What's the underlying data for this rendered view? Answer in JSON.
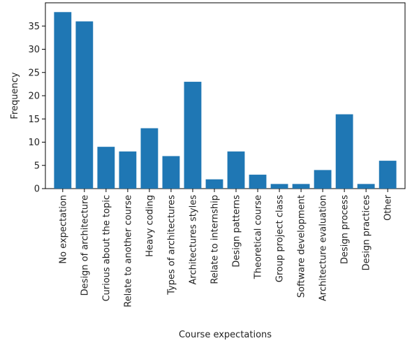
{
  "chart_data": {
    "type": "bar",
    "title": "",
    "xlabel": "Course expectations",
    "ylabel": "Frequency",
    "ylim": [
      0,
      40
    ],
    "yticks": [
      0,
      5,
      10,
      15,
      20,
      25,
      30,
      35
    ],
    "bar_color": "#1f77b4",
    "grid": false,
    "categories": [
      "No expectation",
      "Design of architecture",
      "Curious about the topic",
      "Relate to another course",
      "Heavy coding",
      "Types of architectures",
      "Architectures styles",
      "Relate to internship",
      "Design patterns",
      "Theoretical course",
      "Group project class",
      "Software development",
      "Architecture evaluation",
      "Design process",
      "Design practices",
      "Other"
    ],
    "values": [
      38,
      36,
      9,
      8,
      13,
      7,
      23,
      2,
      8,
      3,
      1,
      1,
      4,
      16,
      1,
      6
    ]
  }
}
